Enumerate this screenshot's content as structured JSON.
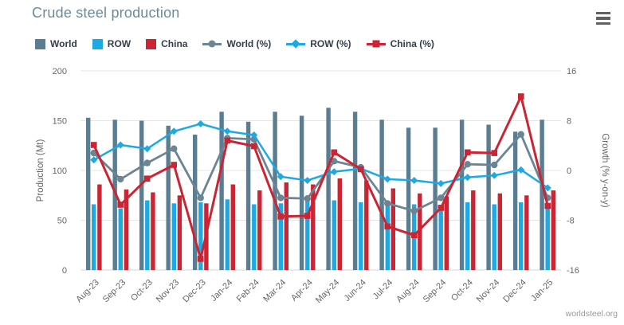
{
  "header": {
    "title": "Crude steel production"
  },
  "menu": {
    "icon": "hamburger-icon"
  },
  "credits": {
    "label": "worldsteel.org"
  },
  "colors": {
    "world_bar": "#5a7d92",
    "row_bar": "#1ca9e4",
    "china_bar": "#cb2433",
    "world_line": "#6b8593",
    "row_line": "#1ca9e4",
    "china_line": "#cb2433",
    "grid": "#e6e6e6",
    "axis_line": "#d0d7dc",
    "tick_text": "#666666",
    "title_text": "#6e8a99",
    "credits_text": "#999999"
  },
  "legend": {
    "items": [
      {
        "label": "World",
        "type": "bar",
        "marker": "square-chip",
        "color": "#5a7d92"
      },
      {
        "label": "ROW",
        "type": "bar",
        "marker": "square-chip",
        "color": "#1ca9e4"
      },
      {
        "label": "China",
        "type": "bar",
        "marker": "square-chip",
        "color": "#cb2433"
      },
      {
        "label": "World (%)",
        "type": "line",
        "marker": "circle",
        "color": "#6b8593"
      },
      {
        "label": "ROW (%)",
        "type": "line",
        "marker": "diamond",
        "color": "#1ca9e4"
      },
      {
        "label": "China (%)",
        "type": "line",
        "marker": "square",
        "color": "#cb2433"
      }
    ]
  },
  "chart_data": {
    "type": "combo-bar-line",
    "title": "Crude steel production",
    "grid": true,
    "legend_position": "top-left",
    "categories": [
      "Aug-23",
      "Sep-23",
      "Oct-23",
      "Nov-23",
      "Dec-23",
      "Jan-24",
      "Feb-24",
      "Mar-24",
      "Apr-24",
      "May-24",
      "Jun-24",
      "Jul-24",
      "Aug-24",
      "Sep-24",
      "Oct-24",
      "Nov-24",
      "Dec-24",
      "Jan-25"
    ],
    "bar_series": [
      {
        "name": "World",
        "color": "#5a7d92",
        "axis": "left",
        "values": [
          153,
          151,
          150,
          145,
          136,
          159,
          149,
          159,
          155,
          163,
          159,
          151,
          143,
          143,
          151,
          146,
          139,
          151
        ]
      },
      {
        "name": "ROW",
        "color": "#1ca9e4",
        "axis": "left",
        "values": [
          66,
          62,
          70,
          67,
          68,
          71,
          66,
          67,
          70,
          70,
          68,
          69,
          66,
          60,
          68,
          66,
          68,
          62
        ]
      },
      {
        "name": "China",
        "color": "#cb2433",
        "axis": "left",
        "values": [
          86,
          81,
          78,
          75,
          67,
          86,
          80,
          88,
          86,
          92,
          90,
          82,
          77,
          74,
          80,
          77,
          75,
          80
        ]
      }
    ],
    "line_series": [
      {
        "name": "World (%)",
        "color": "#6b8593",
        "marker": "circle",
        "axis": "right",
        "width": 2.8,
        "values": [
          2.8,
          -1.4,
          1.2,
          3.5,
          -4.4,
          5.2,
          5.0,
          -4.4,
          -4.5,
          1.5,
          0.5,
          -5.3,
          -6.5,
          -4.4,
          1.0,
          0.9,
          5.8,
          -4.4
        ]
      },
      {
        "name": "ROW (%)",
        "color": "#1ca9e4",
        "marker": "diamond",
        "axis": "right",
        "width": 2.5,
        "values": [
          1.7,
          4.1,
          3.5,
          6.3,
          7.5,
          6.3,
          5.7,
          -1.0,
          -1.6,
          -0.2,
          0.3,
          -1.4,
          -1.6,
          -2.1,
          -1.1,
          -0.8,
          0.1,
          -2.8
        ]
      },
      {
        "name": "China (%)",
        "color": "#cb2433",
        "marker": "square",
        "axis": "right",
        "width": 3,
        "values": [
          4.1,
          -5.5,
          -1.3,
          0.9,
          -14.2,
          4.8,
          3.9,
          -7.4,
          -7.3,
          2.9,
          0.2,
          -9.0,
          -10.4,
          -6.0,
          2.9,
          2.8,
          11.9,
          -5.7
        ]
      }
    ],
    "yAxisLeft": {
      "title": "Production (Mt)",
      "min": 0,
      "max": 200,
      "ticks": [
        200,
        150,
        100,
        50,
        0
      ]
    },
    "yAxisRight": {
      "title": "Growth (% y-on-y)",
      "min": -16,
      "max": 16,
      "ticks": [
        16,
        8,
        0,
        -8,
        -16
      ]
    }
  }
}
